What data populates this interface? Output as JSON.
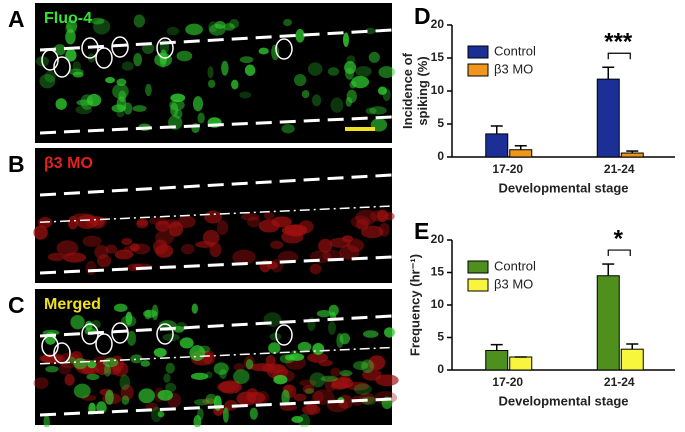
{
  "panels": [
    {
      "letter": "A",
      "label": "Fluo-4"
    },
    {
      "letter": "B",
      "label": "β3 MO"
    },
    {
      "letter": "C",
      "label": "Merged"
    }
  ],
  "chart_data": [
    {
      "type": "bar",
      "letter": "D",
      "ylabel": [
        "Incidence of",
        "spiking (%)"
      ],
      "xlabel": "Developmental stage",
      "annotation": "***",
      "categories": [
        "17-20",
        "21-24"
      ],
      "ylim": [
        0,
        20
      ],
      "yticks": [
        0,
        5,
        10,
        15,
        20
      ],
      "series": [
        {
          "name": "Control",
          "color": "#1c2f96",
          "values": [
            3.5,
            11.8
          ],
          "errors": [
            1.2,
            1.8
          ]
        },
        {
          "name": "β3 MO",
          "color": "#f0961c",
          "values": [
            1.1,
            0.6
          ],
          "errors": [
            0.6,
            0.3
          ]
        }
      ]
    },
    {
      "type": "bar",
      "letter": "E",
      "ylabel": [
        "Frequency (hr⁻¹)"
      ],
      "xlabel": "Developmental stage",
      "annotation": "*",
      "categories": [
        "17-20",
        "21-24"
      ],
      "ylim": [
        0,
        20
      ],
      "yticks": [
        0,
        5,
        10,
        15,
        20
      ],
      "series": [
        {
          "name": "Control",
          "color": "#4e8f1e",
          "values": [
            3.0,
            14.5
          ],
          "errors": [
            0.9,
            1.8
          ]
        },
        {
          "name": "β3 MO",
          "color": "#f7f53c",
          "values": [
            2.0,
            3.2
          ],
          "errors": [
            0,
            0.8
          ]
        }
      ]
    }
  ]
}
